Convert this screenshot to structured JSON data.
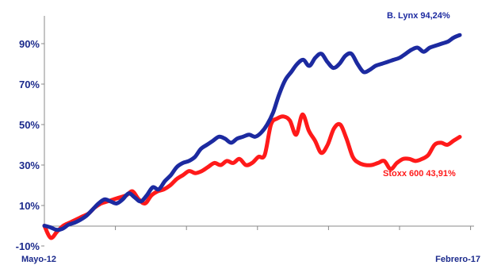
{
  "chart_data": {
    "type": "line",
    "title": "",
    "xlabel": "",
    "ylabel": "",
    "x_start_label": "Mayo-12",
    "x_end_label": "Febrero-17",
    "ylim": [
      -10,
      100
    ],
    "yticks": [
      -10,
      10,
      30,
      50,
      70,
      90
    ],
    "ytick_labels": [
      "-10%",
      "10%",
      "30%",
      "50%",
      "70%",
      "90%"
    ],
    "grid": false,
    "series": [
      {
        "name": "B. Lynx",
        "end_label": "B. Lynx 94,24%",
        "color": "#1c2aa0",
        "values": [
          0,
          -0.8,
          -2,
          -1.5,
          0.5,
          1.5,
          3,
          5,
          8,
          11,
          13,
          12,
          11,
          13,
          16,
          14,
          12,
          15,
          19,
          18,
          22,
          25,
          29,
          31,
          32,
          34,
          38,
          40,
          42,
          44,
          43,
          41,
          43,
          44,
          45,
          44,
          46,
          50,
          56,
          65,
          72,
          76,
          80,
          82,
          79,
          83,
          85,
          81,
          78,
          80,
          84,
          85,
          80,
          76,
          77,
          79,
          80,
          81,
          82,
          83,
          85,
          87,
          88,
          86,
          88,
          89,
          90,
          91,
          93,
          94.24
        ]
      },
      {
        "name": "Stoxx 600",
        "end_label": "Stoxx 600 43,91%",
        "color": "#ff1a1a",
        "values": [
          0,
          -6,
          -3,
          0,
          1.5,
          3,
          4.5,
          6,
          9,
          11,
          12,
          13,
          14,
          15,
          17,
          13,
          11,
          15,
          17,
          18,
          20,
          23,
          25,
          27,
          26,
          27,
          29,
          31,
          30,
          32,
          31,
          33,
          30,
          31,
          34,
          35,
          50,
          53,
          54,
          52,
          45,
          55,
          47,
          42,
          36,
          40,
          48,
          50,
          43,
          34,
          31,
          30,
          30,
          31,
          32,
          28,
          31,
          33,
          33,
          32,
          33,
          35,
          40,
          41,
          40,
          42,
          43.91
        ]
      }
    ]
  }
}
